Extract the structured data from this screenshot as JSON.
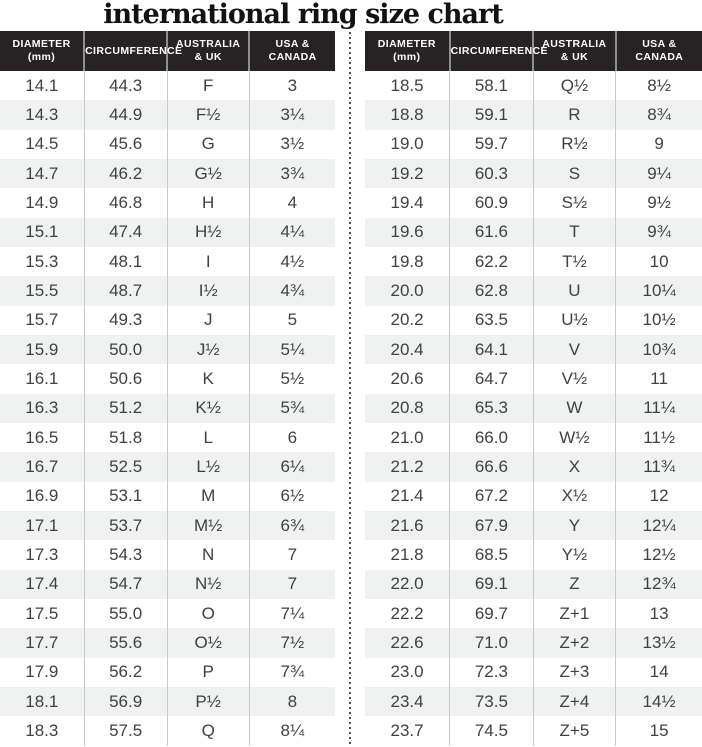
{
  "title": "international ring size chart",
  "colors": {
    "header_bg": "#272324",
    "header_text": "#ffffff",
    "row_stripe": "#f0f2f2",
    "body_text": "#3f4142",
    "divider_dots": "#4e4e4e",
    "column_line": "#c9cbcb"
  },
  "chart_data": {
    "type": "table",
    "title": "international ring size chart",
    "columns": [
      "DIAMETER (mm)",
      "CIRCUMFERENCE",
      "AUSTRALIA & UK",
      "USA & CANADA"
    ],
    "header_lines": [
      "DIAMETER\n(mm)",
      "CIRCUMFERENCE",
      "AUSTRALIA\n& UK",
      "USA &\nCANADA"
    ],
    "tables": [
      {
        "name": "left",
        "rows": [
          [
            "14.1",
            "44.3",
            "F",
            "3"
          ],
          [
            "14.3",
            "44.9",
            "F½",
            "3¼"
          ],
          [
            "14.5",
            "45.6",
            "G",
            "3½"
          ],
          [
            "14.7",
            "46.2",
            "G½",
            "3¾"
          ],
          [
            "14.9",
            "46.8",
            "H",
            "4"
          ],
          [
            "15.1",
            "47.4",
            "H½",
            "4¼"
          ],
          [
            "15.3",
            "48.1",
            "I",
            "4½"
          ],
          [
            "15.5",
            "48.7",
            "I½",
            "4¾"
          ],
          [
            "15.7",
            "49.3",
            "J",
            "5"
          ],
          [
            "15.9",
            "50.0",
            "J½",
            "5¼"
          ],
          [
            "16.1",
            "50.6",
            "K",
            "5½"
          ],
          [
            "16.3",
            "51.2",
            "K½",
            "5¾"
          ],
          [
            "16.5",
            "51.8",
            "L",
            "6"
          ],
          [
            "16.7",
            "52.5",
            "L½",
            "6¼"
          ],
          [
            "16.9",
            "53.1",
            "M",
            "6½"
          ],
          [
            "17.1",
            "53.7",
            "M½",
            "6¾"
          ],
          [
            "17.3",
            "54.3",
            "N",
            "7"
          ],
          [
            "17.4",
            "54.7",
            "N½",
            "7"
          ],
          [
            "17.5",
            "55.0",
            "O",
            "7¼"
          ],
          [
            "17.7",
            "55.6",
            "O½",
            "7½"
          ],
          [
            "17.9",
            "56.2",
            "P",
            "7¾"
          ],
          [
            "18.1",
            "56.9",
            "P½",
            "8"
          ],
          [
            "18.3",
            "57.5",
            "Q",
            "8¼"
          ]
        ]
      },
      {
        "name": "right",
        "rows": [
          [
            "18.5",
            "58.1",
            "Q½",
            "8½"
          ],
          [
            "18.8",
            "59.1",
            "R",
            "8¾"
          ],
          [
            "19.0",
            "59.7",
            "R½",
            "9"
          ],
          [
            "19.2",
            "60.3",
            "S",
            "9¼"
          ],
          [
            "19.4",
            "60.9",
            "S½",
            "9½"
          ],
          [
            "19.6",
            "61.6",
            "T",
            "9¾"
          ],
          [
            "19.8",
            "62.2",
            "T½",
            "10"
          ],
          [
            "20.0",
            "62.8",
            "U",
            "10¼"
          ],
          [
            "20.2",
            "63.5",
            "U½",
            "10½"
          ],
          [
            "20.4",
            "64.1",
            "V",
            "10¾"
          ],
          [
            "20.6",
            "64.7",
            "V½",
            "11"
          ],
          [
            "20.8",
            "65.3",
            "W",
            "11¼"
          ],
          [
            "21.0",
            "66.0",
            "W½",
            "11½"
          ],
          [
            "21.2",
            "66.6",
            "X",
            "11¾"
          ],
          [
            "21.4",
            "67.2",
            "X½",
            "12"
          ],
          [
            "21.6",
            "67.9",
            "Y",
            "12¼"
          ],
          [
            "21.8",
            "68.5",
            "Y½",
            "12½"
          ],
          [
            "22.0",
            "69.1",
            "Z",
            "12¾"
          ],
          [
            "22.2",
            "69.7",
            "Z+1",
            "13"
          ],
          [
            "22.6",
            "71.0",
            "Z+2",
            "13½"
          ],
          [
            "23.0",
            "72.3",
            "Z+3",
            "14"
          ],
          [
            "23.4",
            "73.5",
            "Z+4",
            "14½"
          ],
          [
            "23.7",
            "74.5",
            "Z+5",
            "15"
          ]
        ]
      }
    ]
  }
}
